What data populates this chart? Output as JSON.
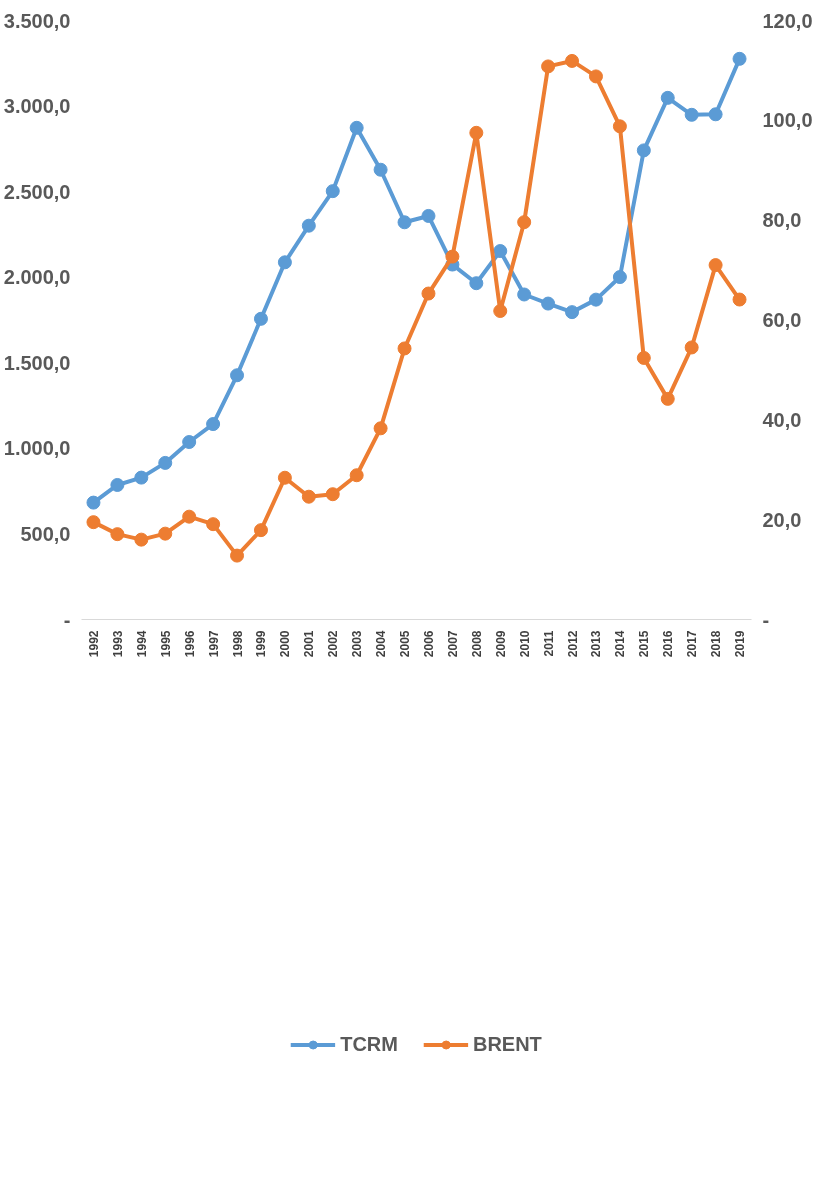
{
  "chart_data": {
    "type": "line",
    "categories": [
      "1992",
      "1993",
      "1994",
      "1995",
      "1996",
      "1997",
      "1998",
      "1999",
      "2000",
      "2001",
      "2002",
      "2003",
      "2004",
      "2005",
      "2006",
      "2007",
      "2008",
      "2009",
      "2010",
      "2011",
      "2012",
      "2013",
      "2014",
      "2015",
      "2016",
      "2017",
      "2018",
      "2019"
    ],
    "series": [
      {
        "name": "TCRM",
        "color": "#5b9bd5",
        "values": [
          683,
          786,
          829,
          915,
          1037,
          1142,
          1427,
          1757,
          2087,
          2301,
          2503,
          2873,
          2628,
          2321,
          2358,
          2074,
          1965,
          2153,
          1899,
          1846,
          1796,
          1869,
          2001,
          2741,
          3048,
          2949,
          2952,
          3276
        ]
      },
      {
        "name": "BRENT",
        "color": "#ed7d31",
        "axis": "y2",
        "values": [
          19.5,
          17.1,
          16.0,
          17.2,
          20.6,
          19.1,
          12.8,
          17.9,
          28.4,
          24.6,
          25.1,
          28.9,
          38.3,
          54.3,
          65.3,
          72.7,
          97.5,
          61.8,
          79.6,
          110.8,
          111.9,
          108.8,
          98.8,
          52.4,
          44.2,
          54.5,
          71.0,
          64.1
        ]
      }
    ],
    "ylim": [
      0,
      3500
    ],
    "yticks": [
      {
        "value": 0,
        "label": "-"
      },
      {
        "value": 500,
        "label": "500,0"
      },
      {
        "value": 1000,
        "label": "1.000,0"
      },
      {
        "value": 1500,
        "label": "1.500,0"
      },
      {
        "value": 2000,
        "label": "2.000,0"
      },
      {
        "value": 2500,
        "label": "2.500,0"
      },
      {
        "value": 3000,
        "label": "3.000,0"
      },
      {
        "value": 3500,
        "label": "3.500,0"
      }
    ],
    "y2lim": [
      0,
      120
    ],
    "y2ticks": [
      {
        "value": 0,
        "label": "-"
      },
      {
        "value": 20,
        "label": "20,0"
      },
      {
        "value": 40,
        "label": "40,0"
      },
      {
        "value": 60,
        "label": "60,0"
      },
      {
        "value": 80,
        "label": "80,0"
      },
      {
        "value": 100,
        "label": "100,0"
      },
      {
        "value": 120,
        "label": "120,0"
      }
    ],
    "grid": false,
    "legend": "bottom",
    "marker": "circle",
    "line_style": "solid"
  }
}
